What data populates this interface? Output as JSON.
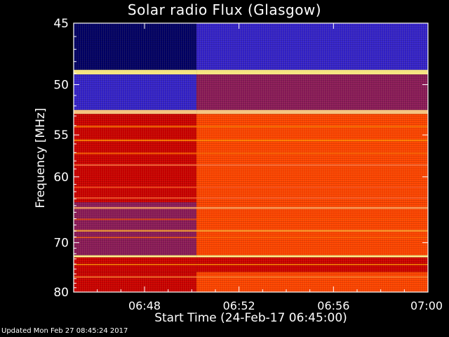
{
  "chart_data": {
    "type": "heatmap",
    "title": "Solar radio Flux (Glasgow)",
    "xlabel": "Start Time (24-Feb-17 06:45:00)",
    "ylabel": "Frequency [MHz]",
    "footer": "Updated Mon Feb 27 08:45:24 2017",
    "x_ticks": [
      "06:48",
      "06:52",
      "06:56",
      "07:00"
    ],
    "x_tick_minutes": [
      48,
      52,
      56,
      60
    ],
    "x_range_minutes": [
      45,
      60
    ],
    "y_ticks": [
      45,
      50,
      55,
      60,
      70,
      80
    ],
    "y_range_mhz": [
      45,
      80
    ],
    "onset_minute": 50.2,
    "colors": {
      "low": "#000066",
      "mid_low": "#3322cc",
      "mid": "#8a1a5a",
      "mid_high": "#cc0000",
      "high": "#ff4400",
      "peak": "#ffee88"
    }
  }
}
